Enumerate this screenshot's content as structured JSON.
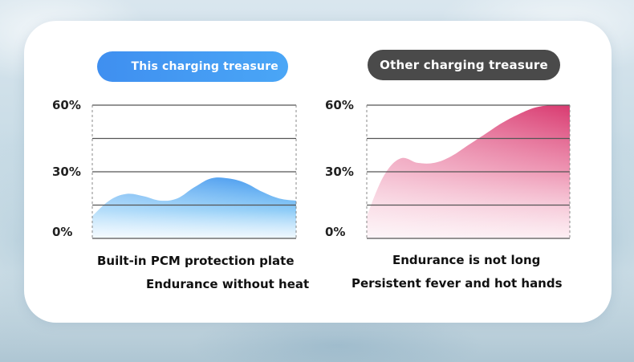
{
  "colors": {
    "left_accent": "#3f8ff0",
    "right_pill": "#4a4a4a",
    "left_fill": "#44a2f0",
    "right_fill": "#e0457a"
  },
  "chart_data": [
    {
      "type": "area",
      "title": "This charging treasure",
      "x": [
        0,
        1,
        2,
        3,
        4,
        5,
        6,
        7,
        8,
        9,
        10,
        11,
        12
      ],
      "values": [
        10,
        17,
        20,
        19,
        17,
        18,
        23,
        27,
        27,
        25,
        21,
        18,
        17
      ],
      "ylim": [
        0,
        60
      ],
      "yticks": [
        "60%",
        "30%",
        "0%"
      ],
      "grid": true,
      "captions": [
        "Built-in PCM protection plate",
        "Endurance without heat"
      ]
    },
    {
      "type": "area",
      "title": "Other charging treasure",
      "x": [
        0,
        1,
        2,
        3,
        4,
        5,
        6,
        7,
        8,
        9,
        10,
        11,
        12
      ],
      "values": [
        10,
        28,
        36,
        34,
        34,
        37,
        42,
        47,
        52,
        56,
        59,
        60,
        60
      ],
      "ylim": [
        0,
        60
      ],
      "yticks": [
        "60%",
        "30%",
        "0%"
      ],
      "grid": true,
      "captions": [
        "Endurance is not long",
        "Persistent fever and hot hands"
      ]
    }
  ]
}
